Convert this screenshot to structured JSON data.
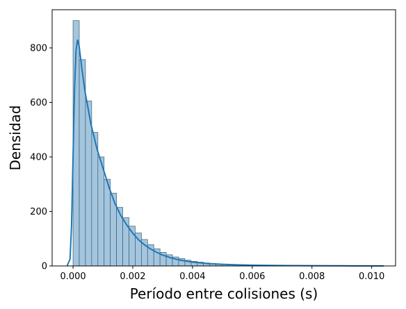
{
  "chart_data": {
    "type": "bar",
    "xlabel": "Período entre colisiones (s)",
    "ylabel": "Densidad",
    "xlim": [
      -0.0007,
      0.0108
    ],
    "ylim": [
      0,
      940
    ],
    "x_ticks": [
      {
        "value": 0.0,
        "label": "0.000"
      },
      {
        "value": 0.002,
        "label": "0.002"
      },
      {
        "value": 0.004,
        "label": "0.004"
      },
      {
        "value": 0.006,
        "label": "0.006"
      },
      {
        "value": 0.008,
        "label": "0.008"
      },
      {
        "value": 0.01,
        "label": "0.010"
      }
    ],
    "y_ticks": [
      {
        "value": 0,
        "label": "0"
      },
      {
        "value": 200,
        "label": "200"
      },
      {
        "value": 400,
        "label": "400"
      },
      {
        "value": 600,
        "label": "600"
      },
      {
        "value": 800,
        "label": "800"
      }
    ],
    "grid": false,
    "bin_start": 0.0,
    "bin_width": 0.000208,
    "histogram": [
      900,
      757,
      605,
      490,
      400,
      318,
      267,
      215,
      177,
      146,
      121,
      97,
      78,
      63,
      50,
      41,
      33,
      27,
      21,
      17,
      14,
      11,
      9,
      7,
      6,
      5,
      4,
      3.5,
      3,
      2.5,
      2,
      2,
      1.5,
      1.5,
      1,
      1,
      1,
      1,
      0.5,
      0.5,
      0.5,
      0.5,
      0.5,
      0.5,
      0.5,
      0.5,
      0.5,
      0.5,
      0.5,
      0.5
    ],
    "kde": {
      "x": [
        -0.0002,
        -0.0001,
        -5e-05,
        0.0,
        5e-05,
        0.0001,
        0.00015,
        0.0002,
        0.0003,
        0.0004,
        0.0005,
        0.0006,
        0.0008,
        0.001,
        0.0012,
        0.0014,
        0.0016,
        0.0018,
        0.002,
        0.0022,
        0.0024,
        0.0026,
        0.0028,
        0.003,
        0.0033,
        0.0036,
        0.004,
        0.0045,
        0.005,
        0.0055,
        0.006,
        0.007,
        0.008,
        0.009,
        0.01,
        0.0104
      ],
      "y": [
        0,
        25,
        150,
        400,
        650,
        790,
        830,
        810,
        720,
        640,
        580,
        520,
        430,
        360,
        290,
        230,
        185,
        150,
        120,
        95,
        77,
        62,
        50,
        40,
        29,
        21,
        14,
        9,
        6,
        4,
        3,
        1.5,
        1,
        0.5,
        0.3,
        0
      ]
    },
    "colors": {
      "bar_fill": "#a3c6de",
      "bar_edge": "#3d5a70",
      "kde_line": "#1f77b4",
      "axis": "#000000"
    }
  }
}
